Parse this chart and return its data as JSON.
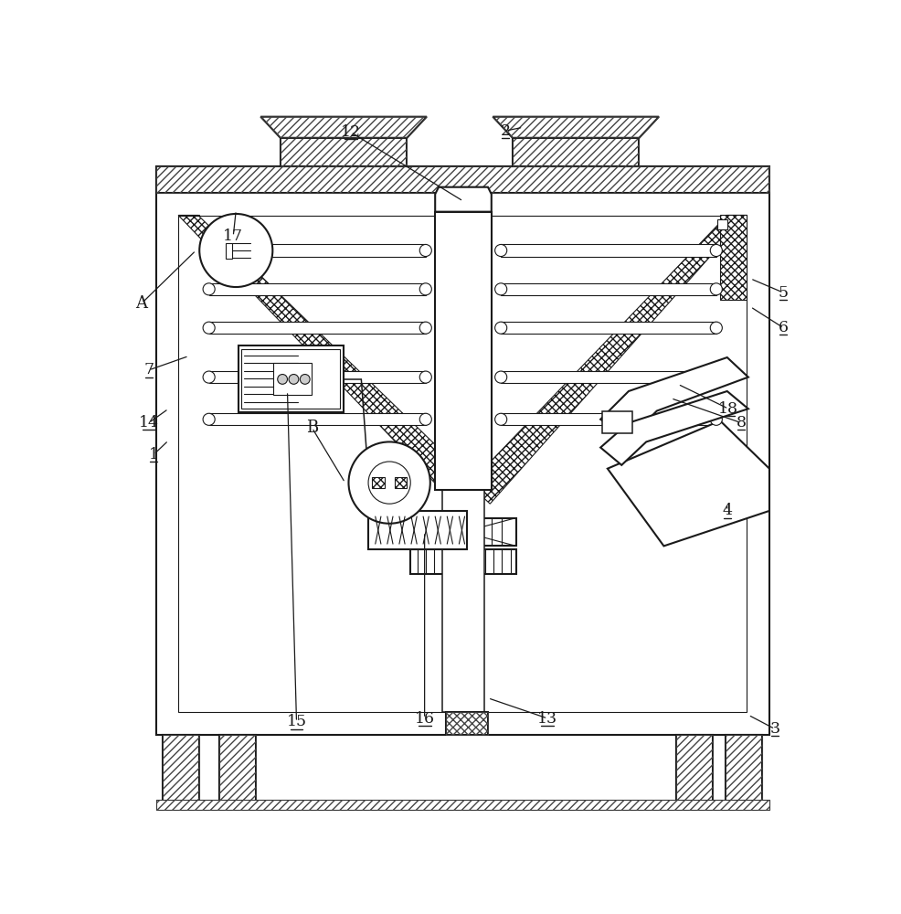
{
  "bg_color": "#ffffff",
  "line_color": "#1a1a1a",
  "hatch_color": "#444444",
  "label_color": "#1a1a1a",
  "fig_width": 9.87,
  "fig_height": 10.0,
  "lw_main": 1.5,
  "lw_thin": 0.8,
  "lw_med": 1.1
}
